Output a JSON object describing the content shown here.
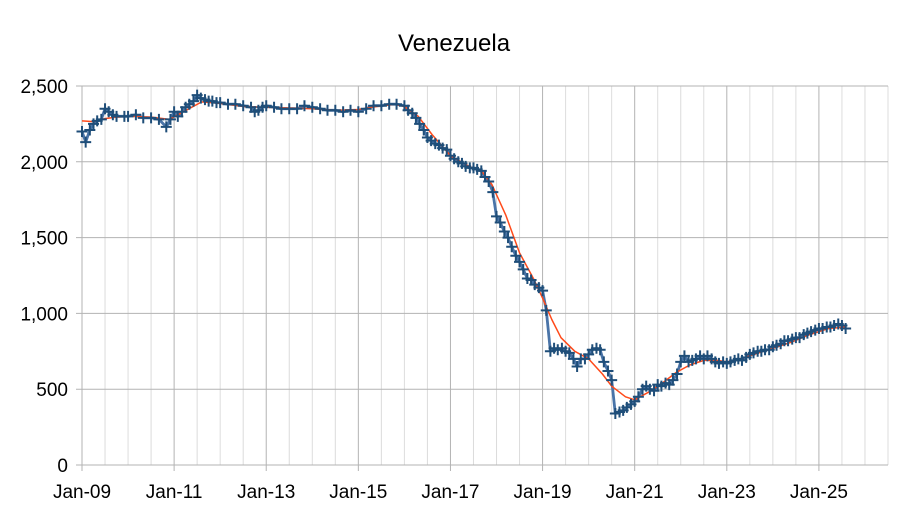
{
  "chart_data": {
    "type": "line",
    "title": "Venezuela",
    "xlabel": "",
    "ylabel": "",
    "ylim": [
      0,
      2500
    ],
    "y_ticks": [
      {
        "value": 0,
        "label": "0"
      },
      {
        "value": 500,
        "label": "500"
      },
      {
        "value": 1000,
        "label": "1,000"
      },
      {
        "value": 1500,
        "label": "1,500"
      },
      {
        "value": 2000,
        "label": "2,000"
      },
      {
        "value": 2500,
        "label": "2,500"
      }
    ],
    "x_ticks": [
      {
        "year": 2009,
        "label": "Jan-09"
      },
      {
        "year": 2011,
        "label": "Jan-11"
      },
      {
        "year": 2013,
        "label": "Jan-13"
      },
      {
        "year": 2015,
        "label": "Jan-15"
      },
      {
        "year": 2017,
        "label": "Jan-17"
      },
      {
        "year": 2019,
        "label": "Jan-19"
      },
      {
        "year": 2021,
        "label": "Jan-21"
      },
      {
        "year": 2023,
        "label": "Jan-23"
      },
      {
        "year": 2025,
        "label": "Jan-25"
      }
    ],
    "x_range": [
      2009,
      2026.5
    ],
    "grid": true,
    "legend": "none",
    "series": [
      {
        "role": "monthly",
        "color": "#4a74a8",
        "marker": "plus",
        "points": [
          [
            2009.0,
            2200
          ],
          [
            2009.08,
            2130
          ],
          [
            2009.17,
            2210
          ],
          [
            2009.25,
            2250
          ],
          [
            2009.33,
            2270
          ],
          [
            2009.42,
            2280
          ],
          [
            2009.5,
            2350
          ],
          [
            2009.58,
            2330
          ],
          [
            2009.67,
            2310
          ],
          [
            2009.75,
            2300
          ],
          [
            2009.92,
            2300
          ],
          [
            2010.0,
            2300
          ],
          [
            2010.17,
            2310
          ],
          [
            2010.33,
            2290
          ],
          [
            2010.5,
            2290
          ],
          [
            2010.67,
            2280
          ],
          [
            2010.83,
            2230
          ],
          [
            2010.92,
            2280
          ],
          [
            2011.0,
            2330
          ],
          [
            2011.08,
            2300
          ],
          [
            2011.17,
            2330
          ],
          [
            2011.25,
            2360
          ],
          [
            2011.33,
            2380
          ],
          [
            2011.42,
            2400
          ],
          [
            2011.5,
            2440
          ],
          [
            2011.58,
            2420
          ],
          [
            2011.67,
            2410
          ],
          [
            2011.75,
            2400
          ],
          [
            2011.83,
            2400
          ],
          [
            2011.92,
            2390
          ],
          [
            2012.0,
            2390
          ],
          [
            2012.17,
            2380
          ],
          [
            2012.33,
            2380
          ],
          [
            2012.5,
            2370
          ],
          [
            2012.67,
            2360
          ],
          [
            2012.75,
            2330
          ],
          [
            2012.83,
            2340
          ],
          [
            2012.92,
            2360
          ],
          [
            2013.0,
            2370
          ],
          [
            2013.17,
            2360
          ],
          [
            2013.33,
            2350
          ],
          [
            2013.5,
            2350
          ],
          [
            2013.67,
            2350
          ],
          [
            2013.83,
            2370
          ],
          [
            2014.0,
            2360
          ],
          [
            2014.17,
            2350
          ],
          [
            2014.33,
            2340
          ],
          [
            2014.5,
            2340
          ],
          [
            2014.67,
            2330
          ],
          [
            2014.83,
            2340
          ],
          [
            2015.0,
            2330
          ],
          [
            2015.17,
            2350
          ],
          [
            2015.33,
            2370
          ],
          [
            2015.5,
            2370
          ],
          [
            2015.67,
            2380
          ],
          [
            2015.83,
            2380
          ],
          [
            2016.0,
            2370
          ],
          [
            2016.08,
            2340
          ],
          [
            2016.17,
            2320
          ],
          [
            2016.25,
            2290
          ],
          [
            2016.33,
            2250
          ],
          [
            2016.42,
            2210
          ],
          [
            2016.5,
            2160
          ],
          [
            2016.58,
            2140
          ],
          [
            2016.67,
            2120
          ],
          [
            2016.75,
            2110
          ],
          [
            2016.83,
            2090
          ],
          [
            2016.92,
            2080
          ],
          [
            2017.0,
            2040
          ],
          [
            2017.08,
            2020
          ],
          [
            2017.17,
            2000
          ],
          [
            2017.25,
            1990
          ],
          [
            2017.33,
            1970
          ],
          [
            2017.42,
            1960
          ],
          [
            2017.5,
            1960
          ],
          [
            2017.58,
            1950
          ],
          [
            2017.67,
            1940
          ],
          [
            2017.75,
            1900
          ],
          [
            2017.83,
            1870
          ],
          [
            2017.92,
            1800
          ],
          [
            2018.0,
            1640
          ],
          [
            2018.08,
            1600
          ],
          [
            2018.17,
            1540
          ],
          [
            2018.25,
            1500
          ],
          [
            2018.33,
            1440
          ],
          [
            2018.42,
            1380
          ],
          [
            2018.5,
            1340
          ],
          [
            2018.58,
            1290
          ],
          [
            2018.67,
            1230
          ],
          [
            2018.75,
            1220
          ],
          [
            2018.83,
            1190
          ],
          [
            2018.92,
            1170
          ],
          [
            2019.0,
            1150
          ],
          [
            2019.08,
            1020
          ],
          [
            2019.17,
            750
          ],
          [
            2019.25,
            770
          ],
          [
            2019.33,
            760
          ],
          [
            2019.42,
            770
          ],
          [
            2019.5,
            750
          ],
          [
            2019.58,
            740
          ],
          [
            2019.67,
            700
          ],
          [
            2019.75,
            650
          ],
          [
            2019.83,
            700
          ],
          [
            2019.92,
            700
          ],
          [
            2020.0,
            730
          ],
          [
            2020.08,
            760
          ],
          [
            2020.17,
            770
          ],
          [
            2020.25,
            760
          ],
          [
            2020.33,
            680
          ],
          [
            2020.42,
            620
          ],
          [
            2020.5,
            560
          ],
          [
            2020.58,
            340
          ],
          [
            2020.67,
            350
          ],
          [
            2020.75,
            360
          ],
          [
            2020.83,
            380
          ],
          [
            2020.92,
            400
          ],
          [
            2021.0,
            420
          ],
          [
            2021.08,
            450
          ],
          [
            2021.17,
            500
          ],
          [
            2021.25,
            520
          ],
          [
            2021.33,
            500
          ],
          [
            2021.42,
            490
          ],
          [
            2021.5,
            530
          ],
          [
            2021.58,
            520
          ],
          [
            2021.67,
            540
          ],
          [
            2021.75,
            530
          ],
          [
            2021.83,
            560
          ],
          [
            2021.92,
            600
          ],
          [
            2022.0,
            680
          ],
          [
            2022.08,
            720
          ],
          [
            2022.17,
            680
          ],
          [
            2022.25,
            690
          ],
          [
            2022.33,
            700
          ],
          [
            2022.42,
            720
          ],
          [
            2022.5,
            700
          ],
          [
            2022.58,
            720
          ],
          [
            2022.67,
            700
          ],
          [
            2022.75,
            680
          ],
          [
            2022.83,
            670
          ],
          [
            2022.92,
            680
          ],
          [
            2023.0,
            670
          ],
          [
            2023.08,
            680
          ],
          [
            2023.17,
            690
          ],
          [
            2023.25,
            700
          ],
          [
            2023.33,
            690
          ],
          [
            2023.42,
            710
          ],
          [
            2023.5,
            730
          ],
          [
            2023.58,
            740
          ],
          [
            2023.67,
            750
          ],
          [
            2023.75,
            750
          ],
          [
            2023.83,
            760
          ],
          [
            2023.92,
            760
          ],
          [
            2024.0,
            780
          ],
          [
            2024.08,
            790
          ],
          [
            2024.17,
            800
          ],
          [
            2024.25,
            820
          ],
          [
            2024.33,
            820
          ],
          [
            2024.42,
            830
          ],
          [
            2024.5,
            840
          ],
          [
            2024.58,
            840
          ],
          [
            2024.67,
            860
          ],
          [
            2024.75,
            870
          ],
          [
            2024.83,
            880
          ],
          [
            2024.92,
            890
          ],
          [
            2025.0,
            900
          ],
          [
            2025.08,
            900
          ],
          [
            2025.17,
            910
          ],
          [
            2025.25,
            910
          ],
          [
            2025.33,
            920
          ],
          [
            2025.42,
            930
          ],
          [
            2025.5,
            920
          ],
          [
            2025.58,
            900
          ]
        ]
      },
      {
        "role": "trend",
        "color": "#ff4a1a",
        "marker": "none",
        "points": [
          [
            2009.0,
            2270
          ],
          [
            2009.25,
            2265
          ],
          [
            2009.5,
            2285
          ],
          [
            2009.75,
            2295
          ],
          [
            2010.0,
            2300
          ],
          [
            2010.5,
            2295
          ],
          [
            2010.9,
            2280
          ],
          [
            2011.2,
            2330
          ],
          [
            2011.6,
            2395
          ],
          [
            2012.0,
            2385
          ],
          [
            2012.5,
            2365
          ],
          [
            2013.0,
            2360
          ],
          [
            2013.5,
            2355
          ],
          [
            2014.0,
            2350
          ],
          [
            2014.5,
            2340
          ],
          [
            2015.0,
            2345
          ],
          [
            2015.4,
            2365
          ],
          [
            2015.8,
            2380
          ],
          [
            2016.0,
            2365
          ],
          [
            2016.3,
            2300
          ],
          [
            2016.6,
            2180
          ],
          [
            2017.0,
            2040
          ],
          [
            2017.4,
            1970
          ],
          [
            2017.7,
            1930
          ],
          [
            2017.9,
            1850
          ],
          [
            2018.2,
            1650
          ],
          [
            2018.5,
            1400
          ],
          [
            2018.8,
            1230
          ],
          [
            2019.0,
            1100
          ],
          [
            2019.2,
            960
          ],
          [
            2019.4,
            840
          ],
          [
            2019.7,
            750
          ],
          [
            2020.0,
            700
          ],
          [
            2020.3,
            600
          ],
          [
            2020.5,
            520
          ],
          [
            2020.8,
            450
          ],
          [
            2021.0,
            430
          ],
          [
            2021.3,
            480
          ],
          [
            2021.6,
            540
          ],
          [
            2021.9,
            610
          ],
          [
            2022.2,
            660
          ],
          [
            2022.5,
            690
          ],
          [
            2022.8,
            690
          ],
          [
            2023.0,
            680
          ],
          [
            2023.3,
            700
          ],
          [
            2023.6,
            730
          ],
          [
            2024.0,
            770
          ],
          [
            2024.4,
            810
          ],
          [
            2024.8,
            860
          ],
          [
            2025.2,
            900
          ],
          [
            2025.58,
            910
          ]
        ]
      }
    ]
  }
}
